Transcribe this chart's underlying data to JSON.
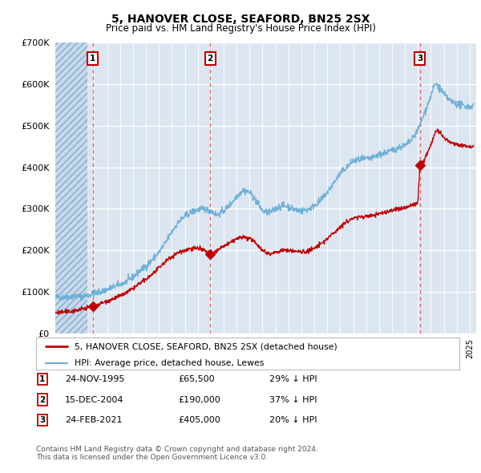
{
  "title": "5, HANOVER CLOSE, SEAFORD, BN25 2SX",
  "subtitle": "Price paid vs. HM Land Registry's House Price Index (HPI)",
  "ylim": [
    0,
    700000
  ],
  "yticks": [
    0,
    100000,
    200000,
    300000,
    400000,
    500000,
    600000,
    700000
  ],
  "ytick_labels": [
    "£0",
    "£100K",
    "£200K",
    "£300K",
    "£400K",
    "£500K",
    "£600K",
    "£700K"
  ],
  "xlim_start": 1993.0,
  "xlim_end": 2025.5,
  "hpi_color": "#6aaed6",
  "price_color": "#c00000",
  "marker_color": "#c00000",
  "vline_color": "#e05555",
  "sale_points": [
    {
      "year": 1995.9,
      "price": 65500,
      "label": "1"
    },
    {
      "year": 2004.96,
      "price": 190000,
      "label": "2"
    },
    {
      "year": 2021.15,
      "price": 405000,
      "label": "3"
    }
  ],
  "table_rows": [
    {
      "num": "1",
      "date": "24-NOV-1995",
      "price": "£65,500",
      "note": "29% ↓ HPI"
    },
    {
      "num": "2",
      "date": "15-DEC-2004",
      "price": "£190,000",
      "note": "37% ↓ HPI"
    },
    {
      "num": "3",
      "date": "24-FEB-2021",
      "price": "£405,000",
      "note": "20% ↓ HPI"
    }
  ],
  "legend_line1": "5, HANOVER CLOSE, SEAFORD, BN25 2SX (detached house)",
  "legend_line2": "HPI: Average price, detached house, Lewes",
  "footnote": "Contains HM Land Registry data © Crown copyright and database right 2024.\nThis data is licensed under the Open Government Licence v3.0.",
  "hatch_end_year": 1995.5,
  "background_color": "#ffffff",
  "plot_bg_color": "#dce6f1"
}
